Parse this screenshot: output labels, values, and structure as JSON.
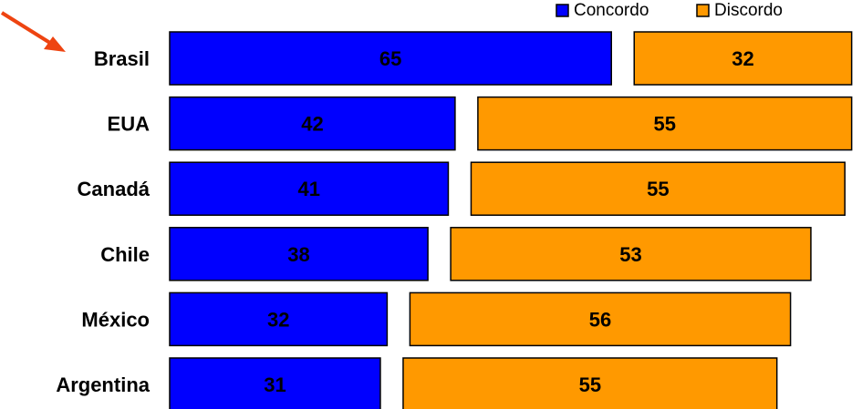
{
  "chart_data": {
    "type": "bar",
    "orientation": "horizontal",
    "categories": [
      "Brasil",
      "EUA",
      "Canadá",
      "Chile",
      "México",
      "Argentina"
    ],
    "series": [
      {
        "name": "Concordo",
        "values": [
          65,
          42,
          41,
          38,
          32,
          31
        ],
        "color": "#0000ff"
      },
      {
        "name": "Discordo",
        "values": [
          32,
          55,
          55,
          53,
          56,
          55
        ],
        "color": "#ff9900"
      }
    ],
    "legend_position": "top-right",
    "grid": false,
    "highlighted_category": "Brasil",
    "highlight_color": "#ee4411"
  }
}
